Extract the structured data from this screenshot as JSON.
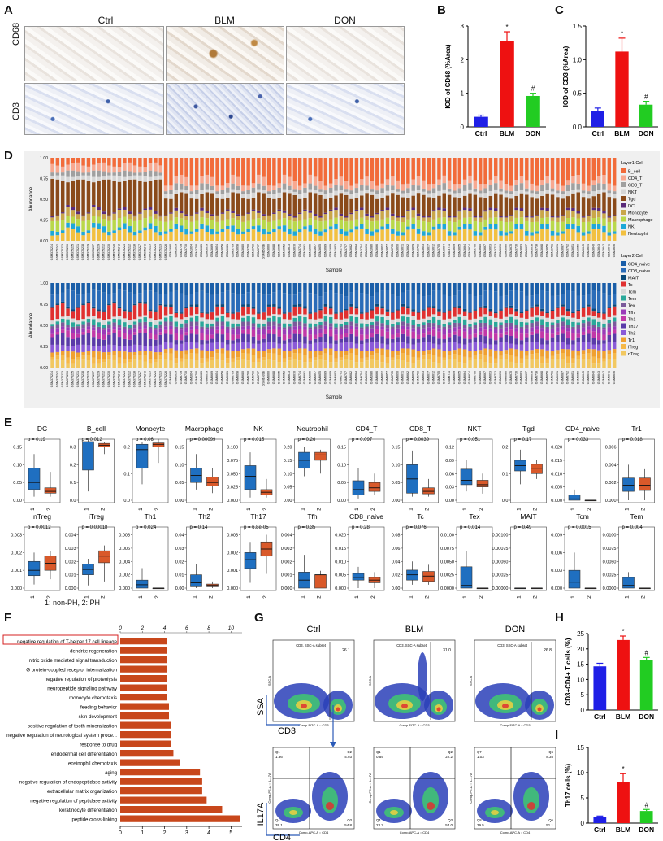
{
  "panels": {
    "A": "A",
    "B": "B",
    "C": "C",
    "D": "D",
    "E": "E",
    "F": "F",
    "G": "G",
    "H": "H",
    "I": "I"
  },
  "panelA": {
    "cols": [
      "Ctrl",
      "BLM",
      "DON"
    ],
    "rows": [
      "CD68",
      "CD3"
    ]
  },
  "chart_data": [
    {
      "type": "bar",
      "panel": "B",
      "categories": [
        "Ctrl",
        "BLM",
        "DON"
      ],
      "values": [
        0.3,
        2.55,
        0.92
      ],
      "errors": [
        0.05,
        0.28,
        0.08
      ],
      "sig": [
        "",
        "*",
        "#"
      ],
      "ylabel": "IOD of CD68 (%Area)",
      "ylim": [
        0,
        3
      ],
      "yticks": [
        "0",
        "1",
        "2",
        "3"
      ],
      "colors": [
        "#1f1fe6",
        "#ee1111",
        "#22cc22"
      ]
    },
    {
      "type": "bar",
      "panel": "C",
      "categories": [
        "Ctrl",
        "BLM",
        "DON"
      ],
      "values": [
        0.24,
        1.12,
        0.33
      ],
      "errors": [
        0.04,
        0.2,
        0.05
      ],
      "sig": [
        "",
        "*",
        "#"
      ],
      "ylabel": "IOD of CD3 (%Area)",
      "ylim": [
        0,
        1.5
      ],
      "yticks": [
        "0.0",
        "0.5",
        "1.0",
        "1.5"
      ],
      "colors": [
        "#1f1fe6",
        "#ee1111",
        "#22cc22"
      ]
    },
    {
      "type": "bar",
      "panel": "F",
      "orientation": "horizontal",
      "categories": [
        "negative regulation of T-helper 17 cell lineage",
        "dendrite regeneration",
        "nitric oxide mediated signal transduction",
        "G protein-coupled receptor internalization",
        "negative regulation of proteolysis",
        "neuropeptide signaling pathway",
        "monocyte chemotaxis",
        "feeding behavior",
        "skin development",
        "positive regulation of tooth mineralization",
        "negative regulation of neurological system proce...",
        "response to drug",
        "endodermal cell differentiation",
        "eosinophil chemotaxis",
        "aging",
        "negative regulation of endopeptidase activity",
        "extracellular matrix organization",
        "negative regulation of peptidase activity",
        "keratinocyte differentiation",
        "peptide cross-linking"
      ],
      "values": [
        2.1,
        2.1,
        2.1,
        2.1,
        2.1,
        2.1,
        2.1,
        2.2,
        2.2,
        2.3,
        2.3,
        2.3,
        2.4,
        2.7,
        3.6,
        3.7,
        3.7,
        3.9,
        4.6,
        5.4
      ],
      "xlabel": "-log10 (Qvalue)",
      "legend": "-log10 (Qvalue)",
      "topticks": [
        "0",
        "2",
        "4",
        "6",
        "8",
        "10"
      ],
      "bottomticks": [
        "0",
        "1",
        "2",
        "3",
        "4",
        "5"
      ],
      "color": "#c8471b"
    },
    {
      "type": "bar",
      "panel": "H",
      "categories": [
        "Ctrl",
        "BLM",
        "DON"
      ],
      "values": [
        14.3,
        22.9,
        16.4
      ],
      "errors": [
        1.0,
        1.3,
        0.8
      ],
      "sig": [
        "",
        "*",
        "#"
      ],
      "ylabel": "CD3+CD4+ T cells (%)",
      "ylim": [
        0,
        25
      ],
      "yticks": [
        "0",
        "5",
        "10",
        "15",
        "20",
        "25"
      ],
      "colors": [
        "#1f1fe6",
        "#ee1111",
        "#22cc22"
      ]
    },
    {
      "type": "bar",
      "panel": "I",
      "categories": [
        "Ctrl",
        "BLM",
        "DON"
      ],
      "values": [
        1.2,
        8.2,
        2.4
      ],
      "errors": [
        0.2,
        1.6,
        0.3
      ],
      "sig": [
        "",
        "*",
        "#"
      ],
      "ylabel": "Th17 cells (%)",
      "ylim": [
        0,
        15
      ],
      "yticks": [
        "0",
        "5",
        "10",
        "15"
      ],
      "colors": [
        "#1f1fe6",
        "#ee1111",
        "#22cc22"
      ]
    },
    {
      "type": "boxplot",
      "panel": "E",
      "groups": [
        "1",
        "2"
      ],
      "legend": "1: non-PH,  2: PH",
      "colors": [
        "#1f6fc0",
        "#d9592a"
      ],
      "cells": [
        {
          "name": "DC",
          "p": "p = 0.19",
          "yticks": [
            "0.00",
            "0.05",
            "0.10",
            "0.15"
          ],
          "b1": [
            0.01,
            0.03,
            0.05,
            0.09,
            0.13
          ],
          "b2": [
            0.01,
            0.02,
            0.025,
            0.035,
            0.08
          ]
        },
        {
          "name": "B_cell",
          "p": "p = 0.012",
          "yticks": [
            "0.0",
            "0.1",
            "0.2",
            "0.3"
          ],
          "b1": [
            0.05,
            0.17,
            0.3,
            0.33,
            0.34
          ],
          "b2": [
            0.26,
            0.3,
            0.31,
            0.32,
            0.33
          ]
        },
        {
          "name": "Monocyte",
          "p": "p = 0.06",
          "yticks": [
            "0.0",
            "0.1",
            "0.2"
          ],
          "b1": [
            0.06,
            0.12,
            0.19,
            0.21,
            0.22
          ],
          "b2": [
            0.14,
            0.2,
            0.21,
            0.215,
            0.23
          ]
        },
        {
          "name": "Macrophage",
          "p": "p = 0.00099",
          "yticks": [
            "0.00",
            "0.05",
            "0.10",
            "0.15"
          ],
          "b1": [
            0.03,
            0.05,
            0.07,
            0.09,
            0.13
          ],
          "b2": [
            0.02,
            0.04,
            0.05,
            0.065,
            0.09
          ]
        },
        {
          "name": "NK",
          "p": "p = 0.015",
          "yticks": [
            "0.000",
            "0.025",
            "0.050",
            "0.075",
            "0.100"
          ],
          "b1": [
            0.005,
            0.02,
            0.045,
            0.065,
            0.09
          ],
          "b2": [
            0.005,
            0.01,
            0.015,
            0.02,
            0.04
          ]
        },
        {
          "name": "Neutrophil",
          "p": "p = 0.26",
          "yticks": [
            "0.00",
            "0.05",
            "0.10",
            "0.15",
            "0.20"
          ],
          "b1": [
            0.09,
            0.12,
            0.15,
            0.18,
            0.2
          ],
          "b2": [
            0.1,
            0.15,
            0.17,
            0.18,
            0.19
          ]
        },
        {
          "name": "CD4_T",
          "p": "p = 0.097",
          "yticks": [
            "0.00",
            "0.05",
            "0.10",
            "0.15"
          ],
          "b1": [
            0.005,
            0.015,
            0.03,
            0.055,
            0.09
          ],
          "b2": [
            0.015,
            0.025,
            0.035,
            0.05,
            0.075
          ]
        },
        {
          "name": "CD8_T",
          "p": "p = 0.0039",
          "yticks": [
            "0.00",
            "0.05",
            "0.10",
            "0.15"
          ],
          "b1": [
            0.01,
            0.02,
            0.06,
            0.1,
            0.14
          ],
          "b2": [
            0.01,
            0.018,
            0.025,
            0.035,
            0.06
          ]
        },
        {
          "name": "NKT",
          "p": "p = 0.051",
          "yticks": [
            "0.00",
            "0.03",
            "0.06",
            "0.09",
            "0.12"
          ],
          "b1": [
            0.02,
            0.035,
            0.045,
            0.07,
            0.09
          ],
          "b2": [
            0.015,
            0.03,
            0.035,
            0.045,
            0.06
          ]
        },
        {
          "name": "Tgd",
          "p": "p = 0.17",
          "yticks": [
            "0.0",
            "0.1",
            "0.2"
          ],
          "b1": [
            0.06,
            0.11,
            0.13,
            0.15,
            0.19
          ],
          "b2": [
            0.08,
            0.1,
            0.12,
            0.135,
            0.15
          ]
        },
        {
          "name": "CD4_naive",
          "p": "p = 0.033",
          "yticks": [
            "0.000",
            "0.005",
            "0.010",
            "0.015",
            "0.020"
          ],
          "b1": [
            0,
            0,
            0.0005,
            0.002,
            0.004
          ],
          "b2": [
            0,
            0,
            0,
            0,
            0
          ]
        },
        {
          "name": "Tr1",
          "p": "p = 0.018",
          "yticks": [
            "0.000",
            "0.002",
            "0.004",
            "0.006"
          ],
          "b1": [
            0,
            0.001,
            0.0017,
            0.0025,
            0.004
          ],
          "b2": [
            0,
            0.0011,
            0.0017,
            0.0025,
            0.0035
          ]
        },
        {
          "name": "nTreg",
          "p": "p = 0.0012",
          "yticks": [
            "0.000",
            "0.001",
            "0.002",
            "0.003"
          ],
          "b1": [
            0.0002,
            0.0007,
            0.001,
            0.0015,
            0.002
          ],
          "b2": [
            0.0005,
            0.001,
            0.0014,
            0.0018,
            0.0021
          ]
        },
        {
          "name": "iTreg",
          "p": "p = 0.00018",
          "yticks": [
            "0.000",
            "0.001",
            "0.002",
            "0.003",
            "0.004"
          ],
          "b1": [
            0.0002,
            0.001,
            0.0014,
            0.0018,
            0.0022
          ],
          "b2": [
            0.0005,
            0.0019,
            0.0024,
            0.0028,
            0.0032
          ]
        },
        {
          "name": "Th1",
          "p": "p = 0.024",
          "yticks": [
            "0.000",
            "0.002",
            "0.004",
            "0.006",
            "0.008"
          ],
          "b1": [
            0,
            0,
            0.0005,
            0.0012,
            0.003
          ],
          "b2": [
            0,
            0,
            0,
            0,
            0
          ]
        },
        {
          "name": "Th2",
          "p": "p = 0.14",
          "yticks": [
            "0.00",
            "0.01",
            "0.02",
            "0.03",
            "0.04"
          ],
          "b1": [
            0,
            0.001,
            0.004,
            0.01,
            0.018
          ],
          "b2": [
            0,
            0.001,
            0.002,
            0.003,
            0.005
          ]
        },
        {
          "name": "Th17",
          "p": "p = 6.8e-05",
          "yticks": [
            "0.000",
            "0.001",
            "0.002",
            "0.003"
          ],
          "b1": [
            0.0003,
            0.0011,
            0.0016,
            0.002,
            0.0026
          ],
          "b2": [
            0.0008,
            0.0018,
            0.0022,
            0.0026,
            0.003
          ]
        },
        {
          "name": "Tfh",
          "p": "p = 0.35",
          "yticks": [
            "0.000",
            "0.001",
            "0.002",
            "0.003",
            "0.004"
          ],
          "b1": [
            0,
            0,
            0.0006,
            0.0012,
            0.0025
          ],
          "b2": [
            0,
            0,
            0.001,
            0.001,
            0.0013
          ]
        },
        {
          "name": "CD8_naive",
          "p": "p = 0.28",
          "yticks": [
            "0.000",
            "0.005",
            "0.010",
            "0.015",
            "0.020"
          ],
          "b1": [
            0,
            0.003,
            0.004,
            0.0055,
            0.008
          ],
          "b2": [
            0,
            0.002,
            0.003,
            0.004,
            0.006
          ]
        },
        {
          "name": "Tc",
          "p": "p = 0.076",
          "yticks": [
            "0.00",
            "0.02",
            "0.04",
            "0.06",
            "0.08"
          ],
          "b1": [
            0.005,
            0.012,
            0.02,
            0.027,
            0.04
          ],
          "b2": [
            0.005,
            0.01,
            0.018,
            0.025,
            0.035
          ]
        },
        {
          "name": "Tex",
          "p": "p = 0.014",
          "yticks": [
            "0.0000",
            "0.0025",
            "0.0050",
            "0.0075",
            "0.0100"
          ],
          "b1": [
            0,
            0,
            0.0005,
            0.004,
            0.007
          ],
          "b2": [
            0,
            0,
            0,
            0,
            0
          ]
        },
        {
          "name": "MAIT",
          "p": "p = 0.49",
          "yticks": [
            "0.00000",
            "0.00025",
            "0.00050",
            "0.00075",
            "0.00100"
          ],
          "b1": [
            0,
            0,
            0,
            0,
            0
          ],
          "b2": [
            0,
            0,
            0,
            0,
            0
          ]
        },
        {
          "name": "Tcm",
          "p": "p = 0.0015",
          "yticks": [
            "0.000",
            "0.003",
            "0.006",
            "0.009"
          ],
          "b1": [
            0,
            0,
            0.001,
            0.003,
            0.006
          ],
          "b2": [
            0,
            0,
            0,
            0,
            0
          ]
        },
        {
          "name": "Tem",
          "p": "p = 0.004",
          "yticks": [
            "0.0000",
            "0.0025",
            "0.0050",
            "0.0075",
            "0.0100"
          ],
          "b1": [
            0,
            0,
            0.0005,
            0.002,
            0.003
          ],
          "b2": [
            0,
            0,
            0,
            0,
            0
          ]
        }
      ]
    }
  ],
  "panelD": {
    "top_ylabel": "Abundance",
    "bottom_ylabel": "Abundance",
    "xlabel": "Sample",
    "yticks": [
      "0.00",
      "0.25",
      "0.50",
      "0.75",
      "1.00"
    ],
    "sample_ids": [
      "GSM375234",
      "GSM375241",
      "GSM375233",
      "GSM375236",
      "GSM375235",
      "GSM375231",
      "GSM375238",
      "GSM375229",
      "GSM375237",
      "GSM375239",
      "GSM375232",
      "GSM375230",
      "GSM375240",
      "GSM375242",
      "GSM375221",
      "GSM375222",
      "GSM375228",
      "GSM375227",
      "GSM375243",
      "GSM375225",
      "GSM375224",
      "GSM375223",
      "GSM375226",
      "GSM1668",
      "GSM1639",
      "GSM3719",
      "GSM3710",
      "GSM1694",
      "GSM3708",
      "GSM3683",
      "GSM3679",
      "GSM3669",
      "GSM3654",
      "GSM3658",
      "GSM3681",
      "GSM3709",
      "GSM3698",
      "GSM3680",
      "GSM3700",
      "GSM3713",
      "GSM3717",
      "GSM1639B",
      "GSM3660",
      "GSM3688",
      "GSM3665",
      "GSM3652",
      "GSM3673",
      "GSM3670",
      "GSM3714",
      "GSM3661",
      "GSM1699",
      "GSM1697",
      "GSM3655",
      "GSM3689",
      "GSM1689",
      "GSM1693",
      "GSM1701",
      "GSM3707",
      "GSM3682",
      "GSM3684",
      "GSM3704",
      "GSM3676",
      "GSM1686",
      "GSM3666",
      "GSM3692",
      "GSM3657",
      "GSM3715",
      "GSM3690",
      "GSM3671",
      "GSM3662",
      "GSM3699",
      "GSM3703",
      "GSM3653",
      "GSM3677",
      "GSM3672",
      "GSM3705",
      "GSM3694",
      "GSM3711",
      "GSM3659",
      "GSM3695",
      "GSM3664",
      "GSM3674",
      "GSM3706",
      "GSM3685",
      "GSM3667",
      "GSM3693",
      "GSM3712",
      "GSM3696",
      "GSM3686",
      "GSM3675",
      "GSM3716",
      "GSM3663",
      "GSM3697",
      "GSM3678",
      "GSM3718",
      "GSM3668",
      "GSM3656",
      "GSM3701",
      "GSM3691",
      "GSM3687",
      "GSM3702",
      "GSM3651",
      "GSM3650",
      "GSM3645",
      "GSM3644",
      "GSM3640",
      "GSM3643",
      "GSM3642",
      "GSM3641",
      "GSM3646"
    ],
    "layer1_title": "Layer1 Cell",
    "layer1": [
      {
        "name": "B_cell",
        "color": "#f26b3a"
      },
      {
        "name": "CD4_T",
        "color": "#f8a890"
      },
      {
        "name": "CD8_T",
        "color": "#a0a0a0"
      },
      {
        "name": "NKT",
        "color": "#d6d6d6"
      },
      {
        "name": "Tgd",
        "color": "#8a4a1a"
      },
      {
        "name": "DC",
        "color": "#5a2a7a"
      },
      {
        "name": "Monocyte",
        "color": "#c9a64a"
      },
      {
        "name": "Macrophage",
        "color": "#b9d84a"
      },
      {
        "name": "NK",
        "color": "#1ea8d8"
      },
      {
        "name": "Neutrophil",
        "color": "#f2c040"
      }
    ],
    "layer2_title": "Layer2 Cell",
    "layer2": [
      {
        "name": "CD4_naive",
        "color": "#1a5ea8"
      },
      {
        "name": "CD8_naive",
        "color": "#2a6cb8"
      },
      {
        "name": "MAIT",
        "color": "#0a4a7a"
      },
      {
        "name": "Tc",
        "color": "#e03030"
      },
      {
        "name": "Tcm",
        "color": "#d8d8d8"
      },
      {
        "name": "Tem",
        "color": "#2aa89a"
      },
      {
        "name": "Tex",
        "color": "#7a5a9a"
      },
      {
        "name": "Tfh",
        "color": "#9a3ab8"
      },
      {
        "name": "Th1",
        "color": "#c238a8"
      },
      {
        "name": "Th17",
        "color": "#5a3aa8"
      },
      {
        "name": "Th2",
        "color": "#8a5ad8"
      },
      {
        "name": "Tr1",
        "color": "#f0a030"
      },
      {
        "name": "iTreg",
        "color": "#f6b848"
      },
      {
        "name": "nTreg",
        "color": "#f2c860"
      }
    ]
  },
  "panelG": {
    "cols": [
      "Ctrl",
      "BLM",
      "DON"
    ],
    "top_axis_y": "SSA",
    "top_axis_x": "CD3",
    "bottom_axis_y": "IL17A",
    "bottom_axis_x": "CD4",
    "top_gate": [
      "CD3, SSC-A subset",
      "CD3, SSC-A subset",
      "CD3, SSC-A subset"
    ],
    "top_gate_pct": [
      "26.1",
      "31.0",
      "26.8"
    ],
    "top_ylabel": "SSC-A",
    "top_xlabel": "Comp-FITC-A :: CD3",
    "bot_ylabel": "Comp-PE-A :: IL-17A",
    "bot_xlabel": "Comp-APC-A :: CD4",
    "quadrants": [
      {
        "Q1": "Q1",
        "Q1v": "1.36",
        "Q2": "Q2",
        "Q2v": "4.93",
        "Q3": "Q3",
        "Q3v": "54.8",
        "Q4": "Q4",
        "Q4v": "39.1"
      },
      {
        "Q1": "Q1",
        "Q1v": "0.59",
        "Q2": "Q2",
        "Q2v": "22.2",
        "Q3": "Q3",
        "Q3v": "54.0",
        "Q4": "Q4",
        "Q4v": "23.2"
      },
      {
        "Q1": "Q7",
        "Q1v": "1.03",
        "Q2": "Q6",
        "Q2v": "8.35",
        "Q3": "Q5",
        "Q3v": "51.1",
        "Q4": "Q8",
        "Q4v": "39.5"
      }
    ]
  }
}
